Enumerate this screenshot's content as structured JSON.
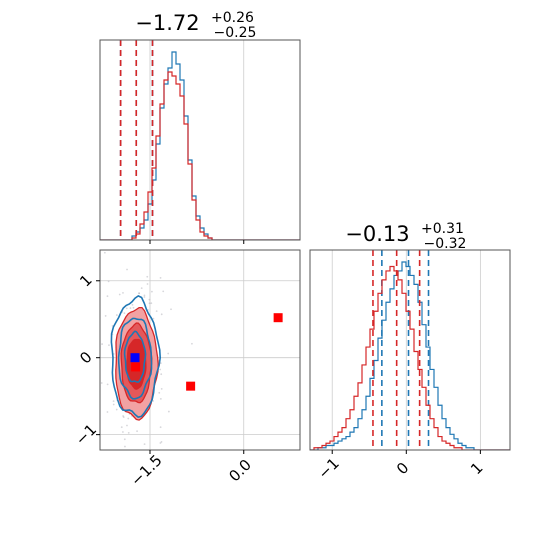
{
  "chart_data": [
    {
      "type": "histogram",
      "panel": "param1-marginal",
      "title": {
        "median": "−1.72",
        "upper": "+0.26",
        "lower": "−0.25"
      },
      "xlim": [
        -2.3,
        0.9
      ],
      "grid": true,
      "series": [
        {
          "color": "#1f77b4",
          "style": "step",
          "bin_start": -2.3,
          "bin_width": 0.064,
          "counts": [
            0,
            0,
            0,
            0,
            0,
            0,
            0,
            0,
            2,
            4,
            6,
            10,
            18,
            30,
            48,
            66,
            78,
            86,
            94,
            88,
            80,
            62,
            40,
            22,
            12,
            6,
            3,
            1,
            0,
            0,
            0,
            0,
            0,
            0,
            0,
            0,
            0,
            0,
            0,
            0,
            0,
            0,
            0,
            0,
            0,
            0,
            0,
            0,
            0,
            0
          ],
          "quantile_lines": [
            -1.97,
            -1.72,
            -1.46
          ]
        },
        {
          "color": "#d62728",
          "style": "step",
          "bin_start": -2.3,
          "bin_width": 0.064,
          "counts": [
            0,
            0,
            0,
            0,
            0,
            0,
            0,
            0,
            1,
            3,
            8,
            14,
            24,
            36,
            52,
            68,
            80,
            84,
            82,
            78,
            72,
            58,
            38,
            20,
            10,
            4,
            2,
            1,
            0,
            0,
            0,
            0,
            0,
            0,
            0,
            0,
            0,
            0,
            0,
            0,
            0,
            0,
            0,
            0,
            0,
            0,
            0,
            0,
            0,
            0
          ],
          "quantile_lines": [
            -1.97,
            -1.72,
            -1.46
          ]
        }
      ]
    },
    {
      "type": "contour",
      "panel": "param1-vs-param2",
      "xlim": [
        -2.3,
        0.9
      ],
      "ylim": [
        -1.2,
        1.4
      ],
      "x_ticks": [
        "−1.5",
        "0.0"
      ],
      "x_tick_values": [
        -1.5,
        0.0
      ],
      "y_ticks": [
        "1",
        "0",
        "−1"
      ],
      "y_tick_values": [
        1,
        0,
        -1
      ],
      "grid": true,
      "series": [
        {
          "color": "#1f77b4",
          "center": [
            -1.74,
            0.0
          ],
          "sigma": [
            0.18,
            0.36
          ]
        },
        {
          "color": "#d62728",
          "center": [
            -1.72,
            -0.08
          ],
          "sigma": [
            0.16,
            0.34
          ]
        }
      ],
      "markers": [
        {
          "color": "#0000ff",
          "x": -1.74,
          "y": 0.0
        },
        {
          "color": "#ff0000",
          "x": -1.73,
          "y": -0.12
        },
        {
          "color": "#ff0000",
          "x": -0.85,
          "y": -0.37
        },
        {
          "color": "#ff0000",
          "x": 0.55,
          "y": 0.52
        }
      ]
    },
    {
      "type": "histogram",
      "panel": "param2-marginal",
      "title": {
        "median": "−0.13",
        "upper": "+0.31",
        "lower": "−0.32"
      },
      "xlim": [
        -1.3,
        1.4
      ],
      "x_ticks": [
        "−1",
        "0",
        "1"
      ],
      "x_tick_values": [
        -1,
        0,
        1
      ],
      "grid": true,
      "series": [
        {
          "color": "#1f77b4",
          "style": "step",
          "bin_start": -1.3,
          "bin_width": 0.054,
          "counts": [
            0,
            0,
            1,
            1,
            2,
            2,
            3,
            4,
            5,
            6,
            8,
            10,
            14,
            18,
            24,
            32,
            40,
            50,
            58,
            66,
            72,
            78,
            80,
            84,
            82,
            78,
            74,
            66,
            56,
            46,
            36,
            28,
            20,
            14,
            10,
            7,
            5,
            3,
            2,
            1,
            1,
            0,
            0,
            0,
            0,
            0,
            0,
            0,
            0,
            0
          ],
          "quantile_lines": [
            -0.33,
            0.03,
            0.3
          ]
        },
        {
          "color": "#d62728",
          "style": "step",
          "bin_start": -1.3,
          "bin_width": 0.054,
          "counts": [
            0,
            1,
            1,
            2,
            3,
            4,
            6,
            8,
            10,
            14,
            18,
            24,
            30,
            38,
            46,
            54,
            62,
            70,
            76,
            80,
            82,
            80,
            76,
            70,
            62,
            54,
            44,
            36,
            28,
            20,
            14,
            10,
            6,
            4,
            3,
            2,
            1,
            1,
            0,
            0,
            0,
            0,
            0,
            0,
            0,
            0,
            0,
            0,
            0,
            0
          ],
          "quantile_lines": [
            -0.45,
            -0.13,
            0.18
          ]
        }
      ]
    }
  ]
}
